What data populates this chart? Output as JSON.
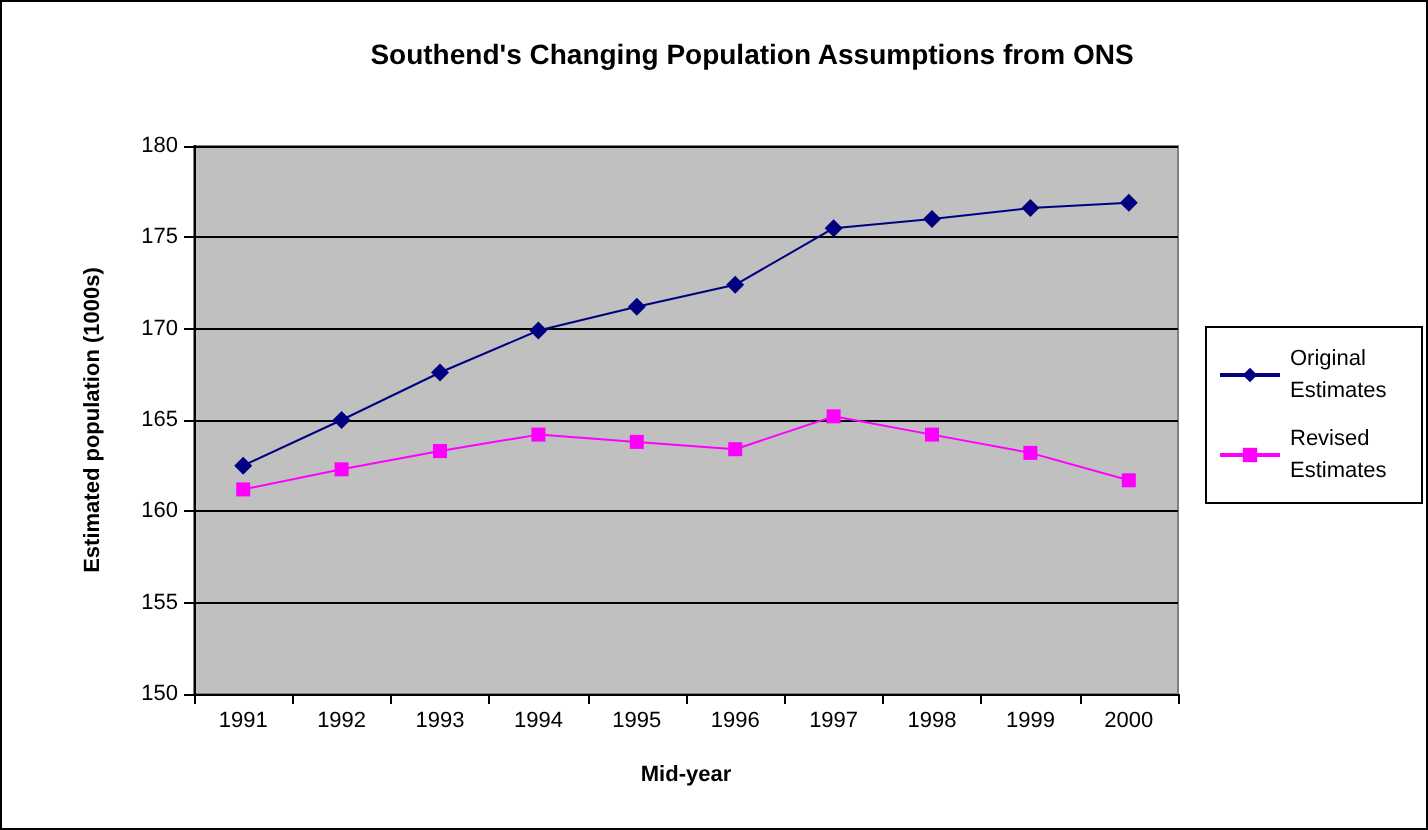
{
  "chart_data": {
    "type": "line",
    "title": "Southend's Changing Population Assumptions from ONS",
    "xlabel": "Mid-year",
    "ylabel": "Estimated population (1000s)",
    "categories": [
      "1991",
      "1992",
      "1993",
      "1994",
      "1995",
      "1996",
      "1997",
      "1998",
      "1999",
      "2000"
    ],
    "series": [
      {
        "name": "Original Estimates",
        "color": "#000080",
        "marker": "diamond",
        "values": [
          162.5,
          165.0,
          167.6,
          169.9,
          171.2,
          172.4,
          175.5,
          176.0,
          176.6,
          176.9
        ]
      },
      {
        "name": "Revised Estimates",
        "color": "#ff00ff",
        "marker": "square",
        "values": [
          161.2,
          162.3,
          163.3,
          164.2,
          163.8,
          163.4,
          165.2,
          164.2,
          163.2,
          161.7
        ]
      }
    ],
    "ylim": [
      150,
      180
    ],
    "yticks": [
      150,
      155,
      160,
      165,
      170,
      175,
      180
    ],
    "grid": "y",
    "legend": "right"
  }
}
